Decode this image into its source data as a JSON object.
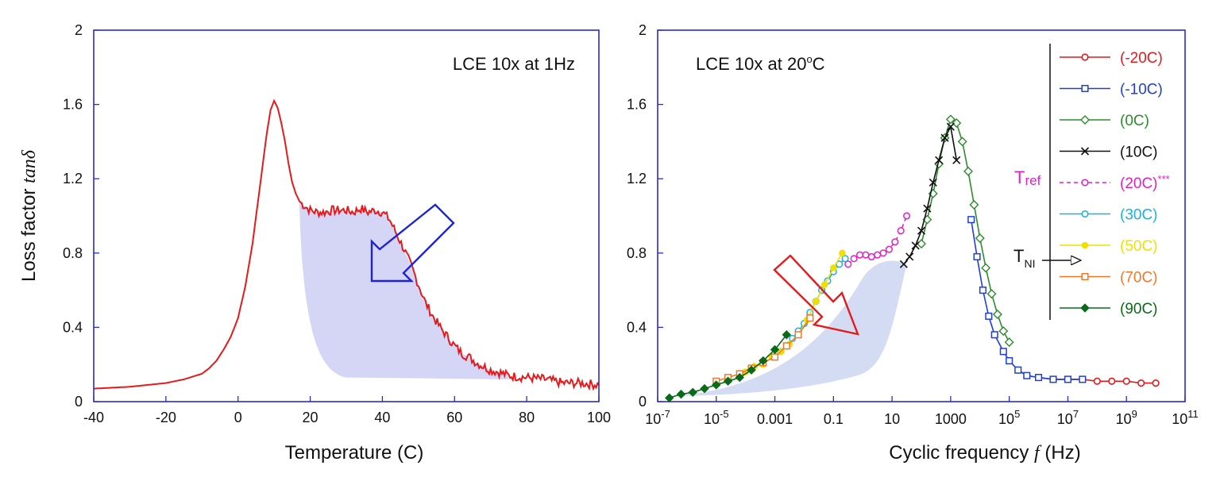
{
  "chart_data": [
    {
      "type": "line",
      "annotation": "LCE 10x at 1Hz",
      "xlabel": "Temperature (C)",
      "ylabel_main": "Loss factor",
      "ylabel_sym": "tanδ",
      "xlim": [
        -40,
        100
      ],
      "ylim": [
        0,
        2
      ],
      "xticks": [
        "-40",
        "-20",
        "0",
        "20",
        "40",
        "60",
        "80",
        "100"
      ],
      "yticks": [
        "0",
        "0.4",
        "0.8",
        "1.2",
        "1.6",
        "2"
      ],
      "series": [
        {
          "color": "#e41a1c",
          "x": [
            -40,
            -30,
            -20,
            -15,
            -10,
            -8,
            -6,
            -4,
            -2,
            0,
            2,
            4,
            6,
            7,
            8,
            9,
            10,
            11,
            12,
            13,
            14,
            15,
            16,
            17,
            18,
            20,
            22,
            24,
            26,
            28,
            30,
            32,
            34,
            36,
            38,
            40,
            42,
            44,
            46,
            48,
            50,
            52,
            54,
            56,
            58,
            60,
            62,
            64,
            66,
            68,
            70,
            72,
            75,
            80,
            85,
            90,
            95,
            100
          ],
          "y": [
            0.07,
            0.08,
            0.1,
            0.12,
            0.15,
            0.18,
            0.22,
            0.28,
            0.35,
            0.45,
            0.62,
            0.85,
            1.15,
            1.3,
            1.45,
            1.57,
            1.62,
            1.58,
            1.5,
            1.4,
            1.28,
            1.18,
            1.12,
            1.08,
            1.06,
            1.03,
            1.02,
            1.02,
            1.03,
            1.03,
            1.03,
            1.02,
            1.04,
            1.02,
            1.03,
            1.02,
            0.98,
            0.9,
            0.82,
            0.73,
            0.63,
            0.53,
            0.46,
            0.4,
            0.35,
            0.3,
            0.26,
            0.24,
            0.21,
            0.19,
            0.17,
            0.16,
            0.14,
            0.13,
            0.12,
            0.1,
            0.1,
            0.09
          ]
        }
      ],
      "shaded_region_color": "#d5d6f5",
      "arrow_color": "#1f23d6"
    },
    {
      "type": "scatter",
      "annotation_main": "LCE 10x at 20",
      "annotation_sup": "o",
      "annotation_end": "C",
      "xlabel_start": "Cyclic frequency ",
      "xlabel_sym": "f",
      "xlabel_end": " (Hz)",
      "xscale": "log",
      "xlim": [
        1e-07,
        100000000000.0
      ],
      "ylim": [
        0,
        2
      ],
      "xticks": [
        {
          "base": "10",
          "exp": "-7"
        },
        {
          "base": "10",
          "exp": "-5"
        },
        {
          "base": "0.001",
          "exp": ""
        },
        {
          "base": "0.1",
          "exp": ""
        },
        {
          "base": "10",
          "exp": ""
        },
        {
          "base": "1000",
          "exp": ""
        },
        {
          "base": "10",
          "exp": "5"
        },
        {
          "base": "10",
          "exp": "7"
        },
        {
          "base": "10",
          "exp": "9"
        },
        {
          "base": "10",
          "exp": "11"
        }
      ],
      "yticks": [
        "0",
        "0.4",
        "0.8",
        "1.2",
        "1.6",
        "2"
      ],
      "legend_position": "top-right",
      "series": [
        {
          "name": "(-20C)",
          "color": "#e41a1c",
          "marker": "circle",
          "logx": [
            6.0,
            6.5,
            7.0,
            7.5,
            8.0,
            8.5,
            9.0,
            9.5,
            10.0
          ],
          "y": [
            0.13,
            0.12,
            0.12,
            0.12,
            0.11,
            0.11,
            0.11,
            0.1,
            0.1
          ]
        },
        {
          "name": "(-10C)",
          "color": "#1f3fd6",
          "marker": "square",
          "logx": [
            3.7,
            3.9,
            4.1,
            4.3,
            4.5,
            4.8,
            5.0,
            5.3,
            5.6,
            6.0,
            6.5,
            7.0,
            7.5
          ],
          "y": [
            0.98,
            0.78,
            0.6,
            0.46,
            0.36,
            0.27,
            0.22,
            0.17,
            0.14,
            0.13,
            0.12,
            0.12,
            0.12
          ]
        },
        {
          "name": "(0C)",
          "color": "#2e8b2e",
          "marker": "diamond",
          "logx": [
            2.0,
            2.2,
            2.4,
            2.6,
            2.8,
            3.0,
            3.2,
            3.4,
            3.6,
            3.8,
            4.0,
            4.2,
            4.4,
            4.6,
            4.8,
            5.0
          ],
          "y": [
            0.85,
            0.98,
            1.12,
            1.28,
            1.42,
            1.52,
            1.5,
            1.4,
            1.24,
            1.06,
            0.88,
            0.72,
            0.58,
            0.47,
            0.38,
            0.32
          ]
        },
        {
          "name": "(10C)",
          "color": "#111111",
          "marker": "cross",
          "logx": [
            1.4,
            1.6,
            1.8,
            2.0,
            2.2,
            2.4,
            2.6,
            2.8,
            3.0,
            3.2
          ],
          "y": [
            0.74,
            0.78,
            0.84,
            0.92,
            1.04,
            1.18,
            1.3,
            1.42,
            1.48,
            1.3
          ]
        },
        {
          "name": "(20C)***",
          "color": "#e020c8",
          "marker": "circle-open",
          "logx": [
            -0.5,
            -0.3,
            -0.1,
            0.1,
            0.3,
            0.5,
            0.7,
            0.9,
            1.1,
            1.3,
            1.5
          ],
          "y": [
            0.74,
            0.77,
            0.79,
            0.79,
            0.78,
            0.79,
            0.8,
            0.82,
            0.86,
            0.92,
            1.0
          ]
        },
        {
          "name": "(30C)",
          "color": "#1ab0e0",
          "marker": "circle-open",
          "logx": [
            -3.0,
            -2.8,
            -2.6,
            -2.4,
            -2.2,
            -2.0,
            -1.8,
            -1.6,
            -1.4,
            -1.2,
            -1.0,
            -0.8,
            -0.6
          ],
          "y": [
            0.24,
            0.27,
            0.3,
            0.34,
            0.38,
            0.42,
            0.48,
            0.54,
            0.6,
            0.65,
            0.7,
            0.74,
            0.77
          ]
        },
        {
          "name": "(50C)",
          "color": "#f0e000",
          "marker": "dot",
          "logx": [
            -4.0,
            -3.7,
            -3.4,
            -3.1,
            -2.8,
            -2.5,
            -2.2,
            -1.9,
            -1.6,
            -1.3,
            -1.0,
            -0.7
          ],
          "y": [
            0.16,
            0.19,
            0.2,
            0.24,
            0.27,
            0.31,
            0.36,
            0.44,
            0.54,
            0.63,
            0.72,
            0.8
          ]
        },
        {
          "name": "(70C)",
          "color": "#f07828",
          "marker": "square-open",
          "logx": [
            -5.0,
            -4.6,
            -4.2,
            -3.8,
            -3.4,
            -3.0,
            -2.6,
            -2.2,
            -1.8
          ],
          "y": [
            0.11,
            0.13,
            0.15,
            0.18,
            0.21,
            0.24,
            0.3,
            0.36,
            0.45
          ]
        },
        {
          "name": "(90C)",
          "color": "#0a6a1a",
          "marker": "diamond-filled",
          "logx": [
            -6.6,
            -6.2,
            -5.8,
            -5.4,
            -5.0,
            -4.6,
            -4.2,
            -3.8,
            -3.4,
            -3.0,
            -2.6
          ],
          "y": [
            0.02,
            0.04,
            0.05,
            0.07,
            0.09,
            0.11,
            0.13,
            0.17,
            0.22,
            0.28,
            0.36
          ]
        }
      ],
      "tref_label": "T",
      "tref_sub": "ref",
      "tni_label": "T",
      "tni_sub": "NI",
      "shaded_region_color": "#d3dcf2",
      "arrow_color": "#e41a1c"
    }
  ]
}
